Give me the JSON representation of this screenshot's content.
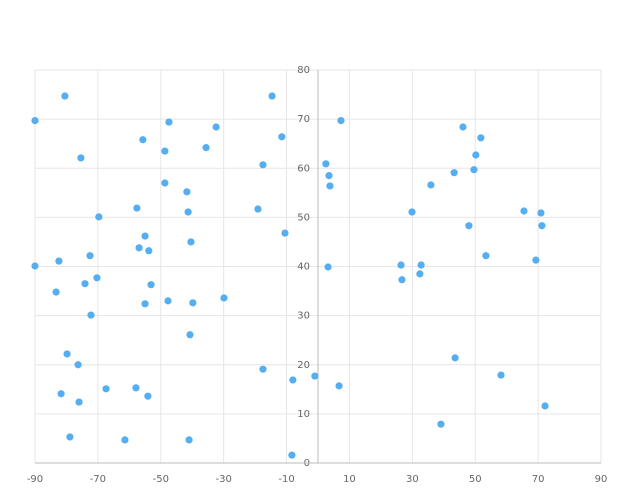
{
  "chart_data": {
    "type": "scatter",
    "x": [
      -90,
      -80.5,
      -14.6,
      -47.4,
      -32.4,
      -55.7,
      -11.5,
      -35.6,
      -48.7,
      -75.4,
      -17.5,
      -48.7,
      -41.7,
      -57.6,
      -19.1,
      -41.3,
      -69.7,
      -10.5,
      -55.0,
      -40.4,
      -56.9,
      -53.8,
      -72.5,
      -90,
      -82.4,
      -70.3,
      -74.1,
      -53.1,
      -83.3,
      -29.9,
      -47.7,
      -39.8,
      -55.0,
      -72.2,
      -40.7,
      -79.8,
      -76.3,
      -17.5,
      -1,
      -8,
      6.7,
      -67.4,
      -57.9,
      -81.7,
      -54.1,
      -76.0,
      -78.9,
      -61.4,
      -41.0,
      -8.3,
      7.3,
      46.1,
      51.8,
      50.2,
      2.5,
      3.5,
      43.3,
      49.6,
      3.8,
      35.9,
      29.9,
      65.5,
      70.9,
      48.0,
      71.2,
      53.4,
      69.3,
      3.2,
      26.4,
      32.8,
      32.4,
      26.7,
      43.6,
      58.2,
      72.2,
      39.1
    ],
    "values": [
      69.7,
      74.7,
      74.7,
      69.4,
      68.4,
      65.8,
      66.4,
      64.2,
      63.5,
      62.1,
      60.7,
      57.0,
      55.2,
      51.9,
      51.7,
      51.1,
      50.1,
      46.8,
      46.2,
      45.0,
      43.8,
      43.2,
      42.2,
      40.1,
      41.1,
      37.7,
      36.5,
      36.3,
      34.8,
      33.6,
      33.0,
      32.6,
      32.4,
      30.1,
      26.1,
      22.2,
      20.0,
      19.1,
      17.7,
      16.9,
      15.7,
      15.1,
      15.3,
      14.1,
      13.6,
      12.4,
      5.3,
      4.7,
      4.7,
      1.6,
      69.7,
      68.4,
      66.2,
      62.7,
      60.9,
      58.5,
      59.1,
      59.7,
      56.4,
      56.6,
      51.1,
      51.3,
      50.9,
      48.3,
      48.3,
      42.2,
      41.3,
      39.9,
      40.3,
      40.3,
      38.5,
      37.3,
      21.4,
      17.9,
      11.6,
      7.9
    ],
    "color": "#55aef0",
    "xlim": [
      -90,
      90
    ],
    "ylim": [
      0,
      80
    ],
    "xticks": [
      -90,
      -70,
      -50,
      -30,
      -10,
      10,
      30,
      50,
      70,
      90
    ],
    "yticks": [
      0,
      10,
      20,
      30,
      40,
      50,
      60,
      70,
      80
    ],
    "grid": true
  }
}
